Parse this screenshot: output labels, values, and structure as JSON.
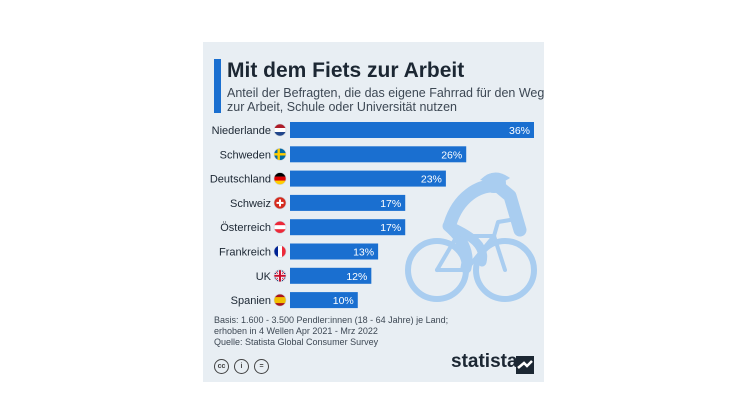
{
  "header": {
    "title": "Mit dem Fiets zur Arbeit",
    "subtitle_line1": "Anteil der Befragten, die das eigene Fahrrad für den Weg",
    "subtitle_line2": "zur Arbeit, Schule oder Universität nutzen"
  },
  "chart_data": {
    "type": "bar",
    "orientation": "horizontal",
    "categories": [
      "Niederlande",
      "Schweden",
      "Deutschland",
      "Schweiz",
      "Österreich",
      "Frankreich",
      "UK",
      "Spanien"
    ],
    "values": [
      36,
      26,
      23,
      17,
      17,
      13,
      12,
      10
    ],
    "data_labels": [
      "36%",
      "26%",
      "23%",
      "17%",
      "17%",
      "13%",
      "12%",
      "10%"
    ],
    "unit": "%",
    "xlim": [
      0,
      36
    ],
    "grid": false,
    "legend": "none",
    "bar_color": "#1a6fd0"
  },
  "flags": [
    "netherlands-flag-icon",
    "sweden-flag-icon",
    "germany-flag-icon",
    "switzerland-flag-icon",
    "austria-flag-icon",
    "france-flag-icon",
    "uk-flag-icon",
    "spain-flag-icon"
  ],
  "footer": {
    "note_line1": "Basis: 1.600 - 3.500 Pendler:innen (18 - 64 Jahre) je Land;",
    "note_line2": "erhoben in 4 Wellen Apr 2021 - Mrz 2022",
    "source": "Quelle: Statista Global Consumer Survey",
    "brand": "statista",
    "license_icons": [
      "cc-icon",
      "by-icon",
      "nd-icon"
    ]
  },
  "colors": {
    "accent": "#1a6fd0",
    "card_bg": "#e8eef3",
    "illustration": "#a9cdf0",
    "text": "#1c2733"
  }
}
